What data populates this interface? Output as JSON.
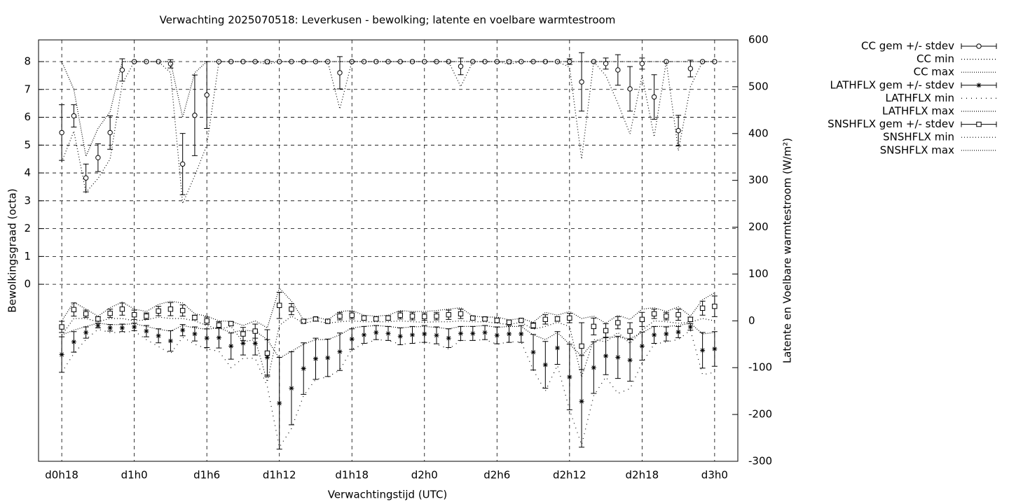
{
  "chart_data": {
    "type": "errorbars",
    "title": "Verwachting 2025070518: Leverkusen - bewolking; latente en voelbare warmtestroom",
    "x_label": "Verwachtingstijd (UTC)",
    "y_label": "Bewolkingsgraad (octa)",
    "y2_label": "Latente en Voelbare warmtestroom (W/m²)",
    "categories": [
      "d0h18",
      null,
      null,
      null,
      null,
      null,
      "d1h0",
      null,
      null,
      null,
      null,
      null,
      "d1h6",
      null,
      null,
      null,
      null,
      null,
      "d1h12",
      null,
      null,
      null,
      null,
      null,
      "d1h18",
      null,
      null,
      null,
      null,
      null,
      "d2h0",
      null,
      null,
      null,
      null,
      null,
      "d2h6",
      null,
      null,
      null,
      null,
      null,
      "d2h12",
      null,
      null,
      null,
      null,
      null,
      "d2h18",
      null,
      null,
      null,
      null,
      null,
      "d3h0"
    ],
    "ylim": [
      -6.36,
      8.78
    ],
    "yticks": [
      0,
      1,
      2,
      3,
      4,
      5,
      6,
      7,
      8
    ],
    "y2lim": [
      -300,
      600
    ],
    "y2ticks": [
      -300,
      -200,
      -100,
      0,
      100,
      200,
      300,
      400,
      500,
      600
    ],
    "grid": true,
    "legend": "top-right-outside",
    "series": [
      {
        "name": "CC gem +/- stdev",
        "color": "#000000",
        "style": "errorbars",
        "marker": "circle",
        "axis": "y",
        "values": [
          5.45,
          6.05,
          3.82,
          4.55,
          5.45,
          7.7,
          8,
          8,
          8,
          7.92,
          4.32,
          6.07,
          6.8,
          8,
          8,
          8,
          8,
          8,
          8,
          8,
          8,
          8,
          8,
          7.6,
          8,
          8,
          8,
          8,
          8,
          8,
          8,
          8,
          8,
          7.83,
          8,
          8,
          8,
          8,
          8,
          8,
          8,
          8,
          8,
          7.27,
          8,
          7.93,
          7.7,
          7.02,
          7.93,
          6.73,
          8,
          5.52,
          7.75,
          8,
          8
        ],
        "errors": [
          1,
          0.4,
          0.5,
          0.5,
          0.6,
          0.4,
          0,
          0,
          0,
          0.15,
          1.1,
          1.45,
          1.2,
          0,
          0,
          0,
          0,
          0.05,
          0,
          0,
          0,
          0,
          0,
          0.58,
          0,
          0,
          0,
          0,
          0,
          0,
          0,
          0,
          0,
          0.3,
          0,
          0,
          0,
          0.05,
          0,
          0,
          0,
          0,
          0.1,
          1.05,
          0,
          0.2,
          0.55,
          0.8,
          0.2,
          0.8,
          0,
          0.55,
          0.3,
          0,
          0
        ]
      },
      {
        "name": "CC min",
        "color": "#000000",
        "style": "line",
        "dash": "1,3",
        "axis": "y",
        "values": [
          4.4,
          5.5,
          3.3,
          3.8,
          4.5,
          7.2,
          8,
          8,
          8,
          7.6,
          2.9,
          3.9,
          5,
          8,
          8,
          8,
          8,
          7.9,
          8,
          8,
          8,
          8,
          8,
          6.3,
          8,
          8,
          8,
          8,
          8,
          8,
          8,
          8,
          8,
          7.1,
          8,
          8,
          8,
          7.9,
          8,
          8,
          8,
          8,
          7.8,
          4.5,
          8,
          7.5,
          6.5,
          5.4,
          7.5,
          5.3,
          8,
          4.8,
          7.1,
          8,
          8
        ]
      },
      {
        "name": "CC max",
        "color": "#000000",
        "style": "line",
        "dash": "1,2",
        "axis": "y",
        "values": [
          8,
          7,
          4.6,
          5.6,
          6.2,
          8,
          8,
          8,
          8,
          8,
          6,
          7.6,
          8,
          8,
          8,
          8,
          8,
          8,
          8,
          8,
          8,
          8,
          8,
          8,
          8,
          8,
          8,
          8,
          8,
          8,
          8,
          8,
          8,
          8,
          8,
          8,
          8,
          8,
          8,
          8,
          8,
          8,
          8,
          8,
          8,
          8,
          8,
          8,
          8,
          8,
          8,
          8,
          8,
          8,
          8
        ]
      },
      {
        "name": "LATHFLX gem +/- stdev",
        "color": "#000000",
        "style": "errorbars",
        "marker": "star",
        "axis": "y2",
        "values": [
          -72,
          -45,
          -25,
          -10,
          -15,
          -15,
          -13,
          -22,
          -32,
          -43,
          -20,
          -28,
          -37,
          -36,
          -54,
          -48,
          -48,
          -78,
          -176,
          -144,
          -102,
          -81,
          -79,
          -66,
          -39,
          -30,
          -25,
          -27,
          -33,
          -30,
          -28,
          -31,
          -37,
          -27,
          -27,
          -25,
          -31,
          -28,
          -28,
          -67,
          -94,
          -58,
          -120,
          -172,
          -100,
          -75,
          -78,
          -84,
          -54,
          -30,
          -28,
          -24,
          -13,
          -63,
          -60
        ],
        "errors": [
          38,
          22,
          12,
          5,
          7,
          8,
          8,
          12,
          15,
          22,
          12,
          15,
          20,
          22,
          28,
          25,
          25,
          38,
          98,
          78,
          55,
          44,
          40,
          40,
          22,
          18,
          15,
          15,
          18,
          18,
          18,
          18,
          20,
          15,
          15,
          15,
          18,
          18,
          18,
          38,
          50,
          35,
          70,
          98,
          55,
          40,
          45,
          45,
          30,
          18,
          15,
          12,
          7,
          38,
          37
        ]
      },
      {
        "name": "LATHFLX min",
        "color": "#000000",
        "style": "line",
        "dash": "1,6",
        "axis": "y2",
        "values": [
          -110,
          -70,
          -40,
          -18,
          -25,
          -25,
          -22,
          -40,
          -55,
          -70,
          -35,
          -50,
          -60,
          -65,
          -100,
          -80,
          -80,
          -140,
          -270,
          -230,
          -160,
          -125,
          -120,
          -105,
          -60,
          -50,
          -40,
          -42,
          -50,
          -48,
          -45,
          -50,
          -60,
          -42,
          -42,
          -40,
          -50,
          -45,
          -45,
          -105,
          -150,
          -95,
          -190,
          -265,
          -160,
          -120,
          -155,
          -145,
          -90,
          -50,
          -45,
          -40,
          -20,
          -115,
          -110
        ]
      },
      {
        "name": "LATHFLX max",
        "color": "#000000",
        "style": "line",
        "dash": "1,2",
        "axis": "y2",
        "values": [
          -30,
          -20,
          -12,
          -5,
          -8,
          -8,
          -6,
          -12,
          -18,
          -22,
          -10,
          -15,
          -18,
          -15,
          -25,
          -20,
          -22,
          -40,
          -80,
          -65,
          -50,
          -40,
          -40,
          -30,
          -15,
          -12,
          -10,
          -12,
          -15,
          -13,
          -12,
          -14,
          -17,
          -12,
          -12,
          -10,
          -14,
          -12,
          -12,
          -30,
          -40,
          -25,
          -50,
          -75,
          -45,
          -35,
          -35,
          -38,
          -25,
          -12,
          -12,
          -10,
          -5,
          -28,
          -25
        ]
      },
      {
        "name": "SNSHFLX gem +/- stdev",
        "color": "#000000",
        "style": "errorbars",
        "marker": "square",
        "axis": "y2",
        "values": [
          -13,
          24,
          15,
          4,
          16,
          25,
          13,
          10,
          21,
          25,
          22,
          7,
          0,
          -9,
          -6,
          -28,
          -22,
          -69,
          33,
          25,
          -1,
          4,
          -1,
          10,
          12,
          6,
          4,
          6,
          12,
          10,
          9,
          10,
          13,
          15,
          6,
          4,
          1,
          -3,
          1,
          -10,
          3,
          4,
          6,
          -54,
          -12,
          -21,
          -4,
          -22,
          3,
          15,
          10,
          13,
          3,
          27,
          31
        ],
        "errors": [
          12,
          14,
          8,
          5,
          9,
          13,
          10,
          7,
          10,
          14,
          12,
          5,
          8,
          7,
          4,
          14,
          15,
          50,
          28,
          12,
          3,
          3,
          3,
          8,
          8,
          5,
          4,
          5,
          8,
          8,
          8,
          8,
          10,
          10,
          4,
          3,
          5,
          3,
          3,
          6,
          10,
          5,
          10,
          50,
          18,
          15,
          13,
          18,
          15,
          10,
          8,
          12,
          5,
          15,
          22
        ]
      },
      {
        "name": "SNSHFLX min",
        "color": "#000000",
        "style": "line",
        "dash": "1,3",
        "axis": "y2",
        "values": [
          -30,
          5,
          5,
          -2,
          5,
          5,
          0,
          2,
          8,
          5,
          5,
          0,
          -10,
          -18,
          -12,
          -45,
          -40,
          -130,
          -10,
          10,
          -5,
          0,
          -5,
          -2,
          0,
          -2,
          -2,
          -2,
          0,
          -2,
          -3,
          -2,
          -2,
          0,
          -2,
          -2,
          -5,
          -8,
          -3,
          -18,
          -12,
          -3,
          -12,
          -120,
          -40,
          -45,
          -25,
          -48,
          -20,
          0,
          -2,
          -5,
          -3,
          5,
          0
        ]
      },
      {
        "name": "SNSHFLX max",
        "color": "#000000",
        "style": "line",
        "dash": "1,2",
        "axis": "y2",
        "values": [
          0,
          40,
          25,
          10,
          28,
          40,
          25,
          20,
          35,
          42,
          38,
          15,
          10,
          0,
          -1,
          -10,
          0,
          -15,
          70,
          42,
          2,
          8,
          2,
          20,
          22,
          12,
          10,
          12,
          22,
          20,
          20,
          22,
          25,
          28,
          10,
          8,
          8,
          2,
          5,
          -3,
          18,
          12,
          20,
          5,
          10,
          -5,
          12,
          3,
          25,
          28,
          20,
          30,
          10,
          45,
          60
        ]
      }
    ]
  }
}
